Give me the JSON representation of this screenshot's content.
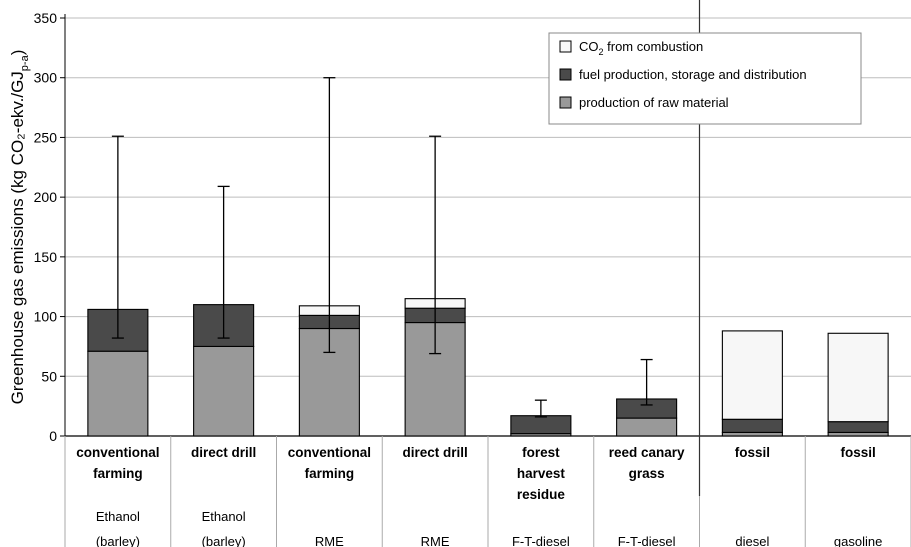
{
  "chart_data": {
    "type": "bar",
    "stacked": true,
    "ylabel": "Greenhouse gas emissions (kg CO₂-ekv./GJ",
    "ylabel_sub": "p-a",
    "ylabel_close": ")",
    "ylim": [
      0,
      350
    ],
    "yticks": [
      0,
      50,
      100,
      150,
      200,
      250,
      300,
      350
    ],
    "grid": true,
    "legend_position": "top-right",
    "categories": [
      {
        "lines": [
          "conventional",
          "farming"
        ],
        "fuel": [
          "Ethanol",
          "(barley)"
        ]
      },
      {
        "lines": [
          "direct drill"
        ],
        "fuel": [
          "Ethanol",
          "(barley)"
        ]
      },
      {
        "lines": [
          "conventional",
          "farming"
        ],
        "fuel": [
          "RME"
        ]
      },
      {
        "lines": [
          "direct drill"
        ],
        "fuel": [
          "RME"
        ]
      },
      {
        "lines": [
          "forest",
          "harvest",
          "residue"
        ],
        "fuel": [
          "F-T-diesel"
        ]
      },
      {
        "lines": [
          "reed canary",
          "grass"
        ],
        "fuel": [
          "F-T-diesel"
        ]
      },
      {
        "lines": [
          "fossil"
        ],
        "fuel": [
          "diesel"
        ]
      },
      {
        "lines": [
          "fossil"
        ],
        "fuel": [
          "gasoline"
        ]
      }
    ],
    "series": [
      {
        "name": "production of raw material",
        "color": "#999999",
        "values": [
          71,
          75,
          90,
          95,
          2,
          15,
          3,
          3
        ]
      },
      {
        "name": "fuel production, storage and distribution",
        "color": "#4a4a4a",
        "values": [
          35,
          35,
          11,
          12,
          15,
          16,
          11,
          9
        ]
      },
      {
        "name": "CO₂ from combustion",
        "color": "#f7f7f7",
        "values": [
          0,
          0,
          8,
          8,
          0,
          0,
          74,
          74
        ]
      }
    ],
    "error_bars": [
      {
        "low": 82,
        "high": 251
      },
      {
        "low": 82,
        "high": 209
      },
      {
        "low": 70,
        "high": 300
      },
      {
        "low": 69,
        "high": 251
      },
      {
        "low": 16,
        "high": 30
      },
      {
        "low": 26,
        "high": 64
      },
      null,
      null
    ],
    "legend": [
      {
        "label_main": "CO",
        "label_sub": "2",
        "label_rest": " from combustion",
        "color": "#f7f7f7"
      },
      {
        "label_main": "fuel production, storage and distribution",
        "label_sub": "",
        "label_rest": "",
        "color": "#4a4a4a"
      },
      {
        "label_main": "production of raw material",
        "label_sub": "",
        "label_rest": "",
        "color": "#999999"
      }
    ]
  }
}
